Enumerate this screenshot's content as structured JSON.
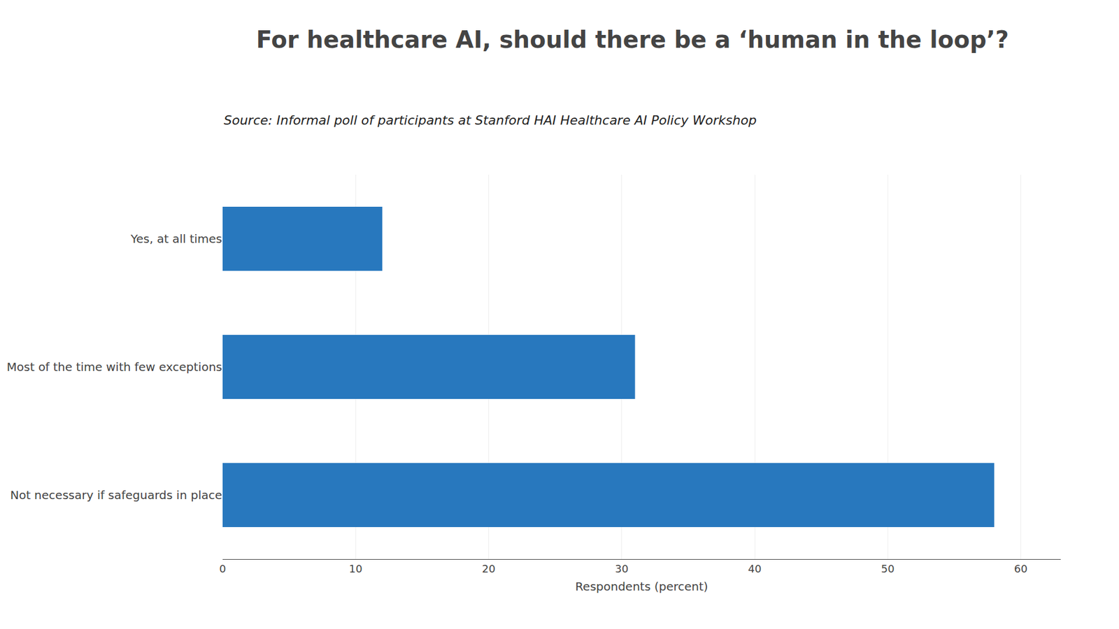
{
  "chart_data": {
    "type": "bar",
    "orientation": "horizontal",
    "title": "For healthcare AI, should there be a ‘human in the loop’?",
    "subtitle": "Source: Informal poll of participants at Stanford HAI Healthcare AI Policy Workshop",
    "categories": [
      "Not necessary if safeguards in place",
      "Most of the time with few exceptions",
      "Yes, at all times"
    ],
    "values": [
      58,
      31,
      12
    ],
    "color": "#2878BE",
    "xlabel": "Respondents (percent)",
    "xlim": [
      0,
      63
    ],
    "xticks": [
      0,
      10,
      20,
      30,
      40,
      50,
      60
    ],
    "grid": true
  }
}
